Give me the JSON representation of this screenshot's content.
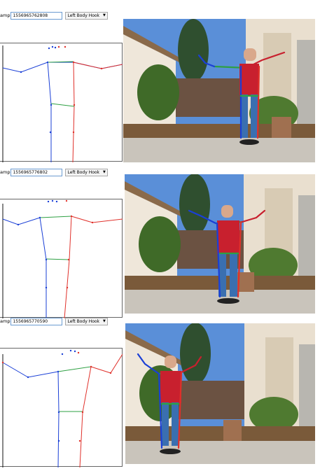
{
  "frames": [
    {
      "timestamp_label": "amp",
      "timestamp_value": "1556965762808",
      "movement": "Left Body Hook"
    },
    {
      "timestamp_label": "amp",
      "timestamp_value": "1556965776802",
      "movement": "Left Body Hook"
    },
    {
      "timestamp_label": "amp",
      "timestamp_value": "1556965770590",
      "movement": "Left Body Hook"
    }
  ],
  "icons": {
    "dropdown": "chevron-down-icon"
  },
  "colors": {
    "left_side": "#1a3fd6",
    "right_side": "#e0302a",
    "torso_line": "#2ea043",
    "plot_border": "#666666",
    "input_border": "#6b9bd1",
    "sky": "#5a8fd8",
    "wall": "#efe7da",
    "ground": "#c9c4bb",
    "plants": "#4f7a30",
    "fence": "#6b5242",
    "shirt": "#c8202e",
    "jeans": "#3a6fb0"
  }
}
